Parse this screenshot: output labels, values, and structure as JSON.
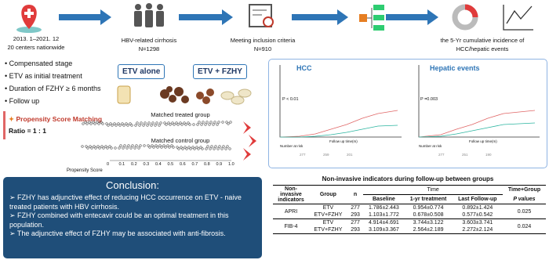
{
  "flow": [
    {
      "lines": [
        "2013. 1–2021. 12",
        "20 centers nationwide"
      ]
    },
    {
      "lines": [
        "HBV-related cirrhosis",
        "N=1298"
      ]
    },
    {
      "lines": [
        "Meeting inclusion criteria",
        "N=910"
      ]
    },
    {
      "lines": [
        "the 5-Yr cumulative incidence of",
        "HCC/hepatic events"
      ]
    }
  ],
  "criteria": [
    "Compensated stage",
    "ETV as initial treatment",
    "Duration of FZHY ≥ 6 months",
    "Follow up"
  ],
  "groups": [
    "ETV alone",
    "ETV + FZHY"
  ],
  "psm": {
    "title": "Propensity Score Matching",
    "ratio": "Ratio = 1 : 1",
    "treated": "Matched treated group",
    "control": "Matched control group",
    "axis_label": "Propensity Score",
    "ticks": [
      "0",
      "0.1",
      "0.2",
      "0.3",
      "0.4",
      "0.5",
      "0.6",
      "0.7",
      "0.8",
      "0.9",
      "1.0"
    ]
  },
  "km": [
    {
      "title": "HCC",
      "p": "P < 0.01",
      "x_label": "Follow up time(m)",
      "risk": "Number at risk"
    },
    {
      "title": "Hepatic events",
      "p": "P =0.003",
      "x_label": "Follow up time(m)",
      "risk": "Number at risk"
    }
  ],
  "conclusion": {
    "title": "Conclusion:",
    "points": [
      "FZHY has adjunctive effect of reducing HCC occurrence on ETV - naive treated patients with HBV cirrhosis.",
      "FZHY combined with entecavir  could be an optimal treatment in this population.",
      "The adjunctive effect of FZHY may be associated with anti-fibrosis."
    ]
  },
  "table": {
    "title": "Non-invasive indicators during follow-up between groups",
    "headers": [
      "Non-invasive indicators",
      "Group",
      "n",
      "Time",
      "Time+Group",
      "Baseline",
      "1-yr treatment",
      "Last Follow-up",
      "P values"
    ],
    "rows": [
      [
        "APRI",
        "ETV",
        "277",
        "1.786±2.443",
        "0.954±0.774",
        "0.892±1.424",
        "0.025"
      ],
      [
        "ETV+FZHY",
        "293",
        "1.103±1.772",
        "0.678±0.508",
        "0.577±0.542"
      ],
      [
        "FIB-4",
        "ETV",
        "277",
        "4.914±4.691",
        "3.744±3.122",
        "3.603±3.741",
        "0.024"
      ],
      [
        "ETV+FZHY",
        "293",
        "3.109±3.367",
        "2.564±2.189",
        "2.272±2.124"
      ]
    ]
  }
}
